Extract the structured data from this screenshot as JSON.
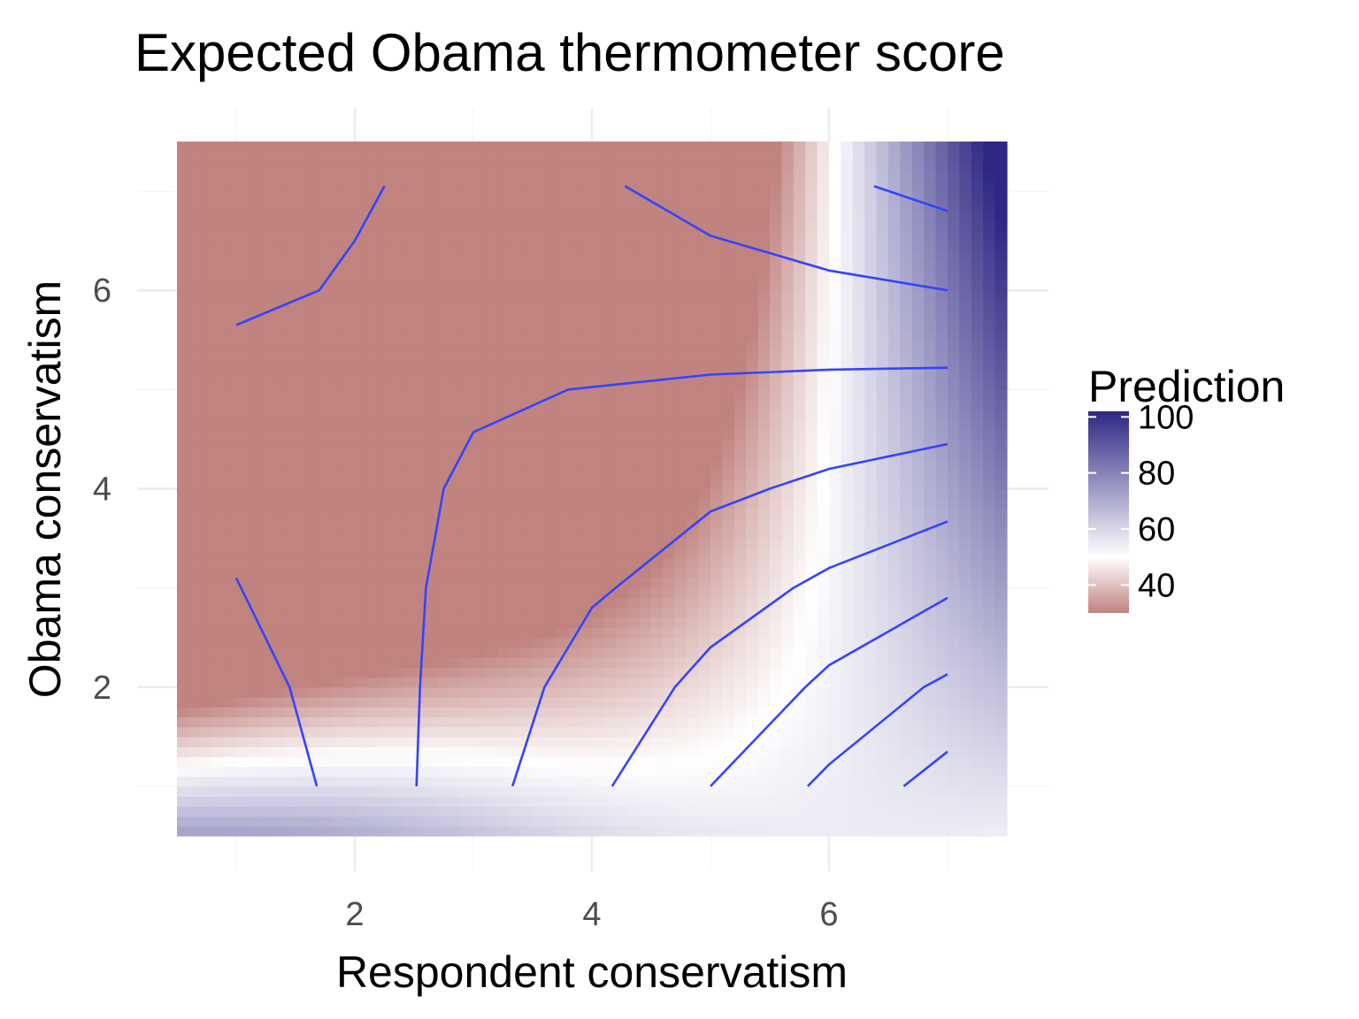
{
  "chart_data": {
    "type": "heatmap",
    "title": "Expected Obama thermometer score",
    "xlabel": "Respondent conservatism",
    "ylabel": "Obama conservatism",
    "xlim": [
      0.5,
      7.5
    ],
    "ylim": [
      0.5,
      7.5
    ],
    "x_ticks": [
      2,
      4,
      6
    ],
    "y_ticks": [
      2,
      4,
      6
    ],
    "grid": true,
    "legend": {
      "title": "Prediction",
      "position": "right",
      "ticks": [
        40,
        60,
        80,
        100
      ],
      "range": [
        30,
        102
      ],
      "midpoint": 50,
      "low_color": "#c0837f",
      "mid_color": "#ffffff",
      "high_color": "#2e2783"
    },
    "surface": {
      "description": "fill = 50 + 6*(x-7)*(y-1) + 5*y + 3*sin(x)",
      "coefficients": {
        "base": 50,
        "interaction": 6,
        "y_slope": 5,
        "wave": 3
      }
    },
    "contour_color": "#3344ff",
    "contours": [
      {
        "points": [
          [
            1.0,
            5.65
          ],
          [
            1.7,
            6.0
          ],
          [
            2.0,
            6.5
          ],
          [
            2.25,
            7.05
          ]
        ]
      },
      {
        "points": [
          [
            4.28,
            7.05
          ],
          [
            5.0,
            6.55
          ],
          [
            6.0,
            6.2
          ],
          [
            7.0,
            6.0
          ]
        ]
      },
      {
        "points": [
          [
            6.38,
            7.05
          ],
          [
            7.0,
            6.8
          ]
        ]
      },
      {
        "points": [
          [
            1.0,
            3.1
          ],
          [
            1.45,
            2.0
          ],
          [
            1.68,
            1.0
          ]
        ]
      },
      {
        "points": [
          [
            2.52,
            1.0
          ],
          [
            2.55,
            2.0
          ],
          [
            2.6,
            3.0
          ],
          [
            2.75,
            4.0
          ],
          [
            3.0,
            4.57
          ],
          [
            3.8,
            5.0
          ],
          [
            5.0,
            5.15
          ],
          [
            6.0,
            5.2
          ],
          [
            7.0,
            5.22
          ]
        ]
      },
      {
        "points": [
          [
            3.33,
            1.0
          ],
          [
            3.6,
            2.0
          ],
          [
            4.0,
            2.8
          ],
          [
            4.2,
            3.0
          ],
          [
            5.0,
            3.77
          ],
          [
            5.5,
            4.0
          ],
          [
            6.0,
            4.2
          ],
          [
            7.0,
            4.45
          ]
        ]
      },
      {
        "points": [
          [
            4.17,
            1.0
          ],
          [
            4.7,
            2.0
          ],
          [
            5.0,
            2.4
          ],
          [
            5.7,
            3.0
          ],
          [
            6.0,
            3.2
          ],
          [
            7.0,
            3.67
          ]
        ]
      },
      {
        "points": [
          [
            5.0,
            1.0
          ],
          [
            5.8,
            2.0
          ],
          [
            6.0,
            2.22
          ],
          [
            7.0,
            2.9
          ]
        ]
      },
      {
        "points": [
          [
            5.82,
            1.0
          ],
          [
            6.0,
            1.22
          ],
          [
            6.8,
            2.0
          ],
          [
            7.0,
            2.13
          ]
        ]
      },
      {
        "points": [
          [
            6.63,
            1.0
          ],
          [
            7.0,
            1.35
          ]
        ]
      }
    ]
  }
}
